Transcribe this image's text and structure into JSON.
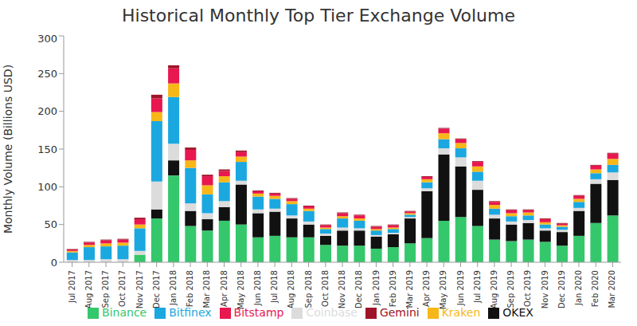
{
  "chart_data": {
    "type": "bar",
    "title": "Historical Monthly Top Tier Exchange Volume",
    "y_label": "Monthly Volume (Billions USD)",
    "categories": [
      "Jul 2017",
      "Aug 2017",
      "Sep 2017",
      "Oct 2017",
      "Nov 2017",
      "Dec 2017",
      "Jan 2018",
      "Feb 2018",
      "Mar 2018",
      "Apr 2018",
      "May 2018",
      "Jun 2018",
      "Jul 2018",
      "Aug 2018",
      "Sep 2018",
      "Oct 2018",
      "Nov 2018",
      "Dec 2018",
      "Jan 2019",
      "Feb 2019",
      "Mar 2019",
      "Apr 2019",
      "May 2019",
      "Jun 2019",
      "Jul 2019",
      "Aug 2019",
      "Sep 2019",
      "Oct 2019",
      "Nov 2019",
      "Dec 2019",
      "Jan 2020",
      "Feb 2020",
      "Mar 2020"
    ],
    "series": [
      {
        "name": "Binance",
        "color": "#35c76b",
        "values": [
          0,
          0,
          0,
          0,
          10,
          58,
          115,
          48,
          42,
          55,
          50,
          33,
          35,
          33,
          33,
          23,
          22,
          22,
          18,
          20,
          25,
          32,
          55,
          60,
          48,
          30,
          28,
          30,
          27,
          22,
          35,
          52,
          62
        ]
      },
      {
        "name": "OKEX",
        "color": "#111111",
        "values": [
          0,
          0,
          0,
          0,
          0,
          12,
          20,
          20,
          15,
          18,
          53,
          32,
          32,
          25,
          17,
          12,
          20,
          20,
          16,
          17,
          33,
          62,
          88,
          67,
          48,
          28,
          22,
          22,
          15,
          18,
          33,
          52,
          47
        ]
      },
      {
        "name": "Coinbase",
        "color": "#dcdcdc",
        "values": [
          3,
          3,
          4,
          4,
          5,
          37,
          22,
          10,
          8,
          8,
          5,
          5,
          4,
          4,
          4,
          3,
          4,
          3,
          2,
          2,
          2,
          4,
          8,
          12,
          12,
          5,
          4,
          4,
          3,
          3,
          4,
          6,
          10
        ]
      },
      {
        "name": "Bitfinex",
        "color": "#1ba8e0",
        "values": [
          10,
          17,
          17,
          18,
          30,
          80,
          62,
          47,
          25,
          25,
          25,
          17,
          13,
          15,
          14,
          6,
          12,
          10,
          6,
          5,
          3,
          8,
          12,
          12,
          12,
          8,
          7,
          6,
          5,
          4,
          8,
          8,
          10
        ]
      },
      {
        "name": "Kraken",
        "color": "#f7b718",
        "values": [
          2,
          3,
          4,
          4,
          5,
          12,
          18,
          10,
          12,
          8,
          7,
          4,
          4,
          4,
          3,
          2,
          3,
          3,
          2,
          2,
          2,
          4,
          8,
          7,
          7,
          5,
          4,
          4,
          3,
          2,
          4,
          5,
          8
        ]
      },
      {
        "name": "Bitstamp",
        "color": "#e8174f",
        "values": [
          2,
          3,
          4,
          4,
          7,
          18,
          20,
          14,
          12,
          7,
          6,
          3,
          3,
          3,
          3,
          3,
          4,
          4,
          3,
          3,
          2,
          3,
          6,
          5,
          6,
          4,
          4,
          3,
          4,
          2,
          4,
          5,
          7
        ]
      },
      {
        "name": "Gemini",
        "color": "#9e1428",
        "values": [
          0.5,
          1,
          1,
          1,
          2,
          5,
          4,
          3,
          2,
          2,
          2,
          1,
          1,
          1,
          1,
          1,
          1,
          1,
          1,
          1,
          1,
          1,
          1,
          1,
          1,
          1,
          1,
          1,
          1,
          1,
          1,
          1,
          1
        ]
      }
    ],
    "ylim": [
      0,
      300
    ],
    "yticks": [
      0,
      50,
      100,
      150,
      200,
      250,
      300
    ],
    "stacked": true,
    "grid": false,
    "legend": "bottom"
  }
}
